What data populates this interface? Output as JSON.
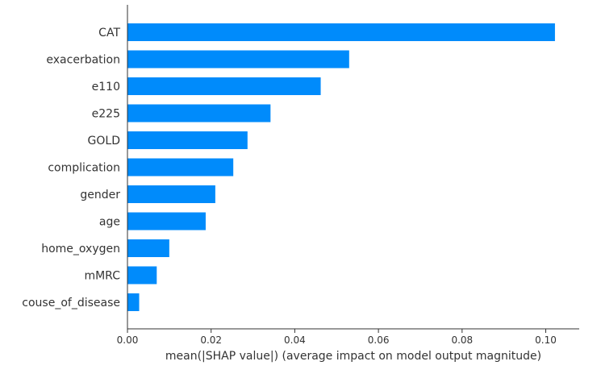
{
  "chart_data": {
    "type": "bar",
    "orientation": "horizontal",
    "title": "",
    "xlabel": "mean(|SHAP value|) (average impact on model output magnitude)",
    "ylabel": "",
    "categories": [
      "CAT",
      "exacerbation",
      "e110",
      "e225",
      "GOLD",
      "complication",
      "gender",
      "age",
      "home_oxygen",
      "mMRC",
      "couse_of_disease"
    ],
    "values": [
      0.1022,
      0.053,
      0.0462,
      0.0342,
      0.0287,
      0.0253,
      0.021,
      0.0187,
      0.01,
      0.007,
      0.0028
    ],
    "xlim": [
      0,
      0.108
    ],
    "xticks": [
      0,
      0.02,
      0.04,
      0.06,
      0.08,
      0.1
    ],
    "xtick_labels": [
      "0.00",
      "0.02",
      "0.04",
      "0.06",
      "0.08",
      "0.10"
    ],
    "grid": false,
    "legend": "none",
    "bar_color": "#008bfb",
    "axis_color": "#333333",
    "text_color": "#333333"
  }
}
